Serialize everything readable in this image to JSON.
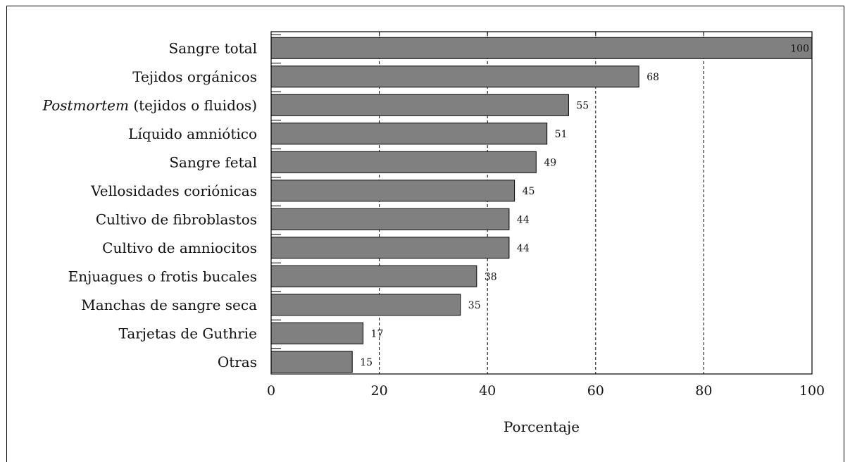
{
  "chart_data": {
    "type": "bar",
    "orientation": "horizontal",
    "categories": [
      {
        "pre": "",
        "italic": "",
        "post": "Sangre total"
      },
      {
        "pre": "",
        "italic": "",
        "post": "Tejidos orgánicos"
      },
      {
        "pre": "",
        "italic": "Postmortem",
        "post": " (tejidos o fluidos)"
      },
      {
        "pre": "",
        "italic": "",
        "post": "Líquido amniótico"
      },
      {
        "pre": "",
        "italic": "",
        "post": "Sangre fetal"
      },
      {
        "pre": "",
        "italic": "",
        "post": "Vellosidades coriónicas"
      },
      {
        "pre": "",
        "italic": "",
        "post": "Cultivo de fibroblastos"
      },
      {
        "pre": "",
        "italic": "",
        "post": "Cultivo de amniocitos"
      },
      {
        "pre": "",
        "italic": "",
        "post": "Enjuagues o frotis bucales"
      },
      {
        "pre": "",
        "italic": "",
        "post": "Manchas de sangre seca"
      },
      {
        "pre": "",
        "italic": "",
        "post": "Tarjetas de Guthrie"
      },
      {
        "pre": "",
        "italic": "",
        "post": "Otras"
      }
    ],
    "values": [
      100,
      68,
      55,
      51,
      49,
      45,
      44,
      44,
      38,
      35,
      17,
      15
    ],
    "value_labels": [
      "100",
      "68",
      "55",
      "51",
      "49",
      "45",
      "44",
      "44",
      "38",
      "35",
      "17",
      "15"
    ],
    "xlim": [
      0,
      100
    ],
    "xticks": [
      0,
      20,
      40,
      60,
      80,
      100
    ],
    "xtick_labels": [
      "0",
      "20",
      "40",
      "60",
      "80",
      "100"
    ],
    "xlabel": "Porcentaje",
    "ylabel": "",
    "title": "",
    "grid": "vertical dashed",
    "colors": {
      "bar_fill": "#808080",
      "bar_stroke": "#000000"
    }
  }
}
